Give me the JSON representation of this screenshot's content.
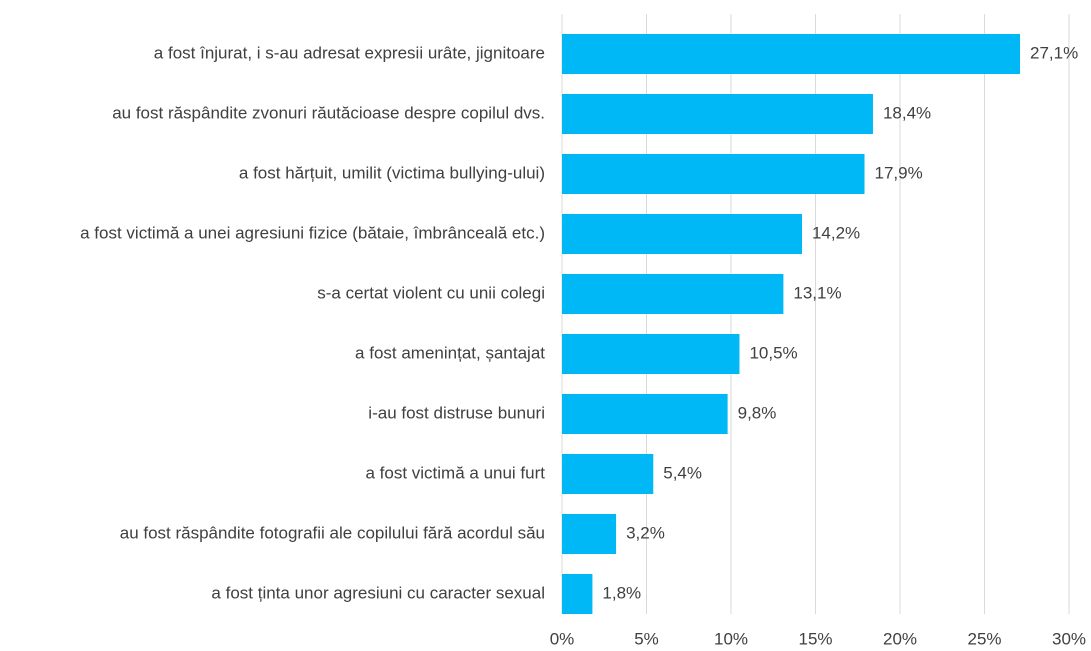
{
  "chart_data": {
    "type": "bar",
    "orientation": "horizontal",
    "categories": [
      "a fost înjurat, i s-au adresat expresii urâte, jignitoare",
      "au fost răspândite zvonuri răutăcioase despre copilul dvs.",
      "a fost hărțuit, umilit (victima bullying-ului)",
      "a fost victimă a unei agresiuni fizice (bătaie, îmbrânceală etc.)",
      "s-a certat violent cu unii colegi",
      "a fost amenințat, șantajat",
      "i-au fost distruse bunuri",
      "a fost victimă a unui furt",
      "au fost răspândite fotografii ale copilului fără acordul său",
      "a fost ținta unor agresiuni cu caracter sexual"
    ],
    "values": [
      27.1,
      18.4,
      17.9,
      14.2,
      13.1,
      10.5,
      9.8,
      5.4,
      3.2,
      1.8
    ],
    "value_labels": [
      "27,1%",
      "18,4%",
      "17,9%",
      "14,2%",
      "13,1%",
      "10,5%",
      "9,8%",
      "5,4%",
      "3,2%",
      "1,8%"
    ],
    "color": "#00b8f5",
    "xlim": [
      0,
      30
    ],
    "xticks": [
      {
        "value": 0,
        "label": "0%"
      },
      {
        "value": 5,
        "label": "5%"
      },
      {
        "value": 10,
        "label": "10%"
      },
      {
        "value": 15,
        "label": "15%"
      },
      {
        "value": 20,
        "label": "20%"
      },
      {
        "value": 25,
        "label": "25%"
      },
      {
        "value": 30,
        "label": "30%"
      }
    ],
    "grid": true
  }
}
